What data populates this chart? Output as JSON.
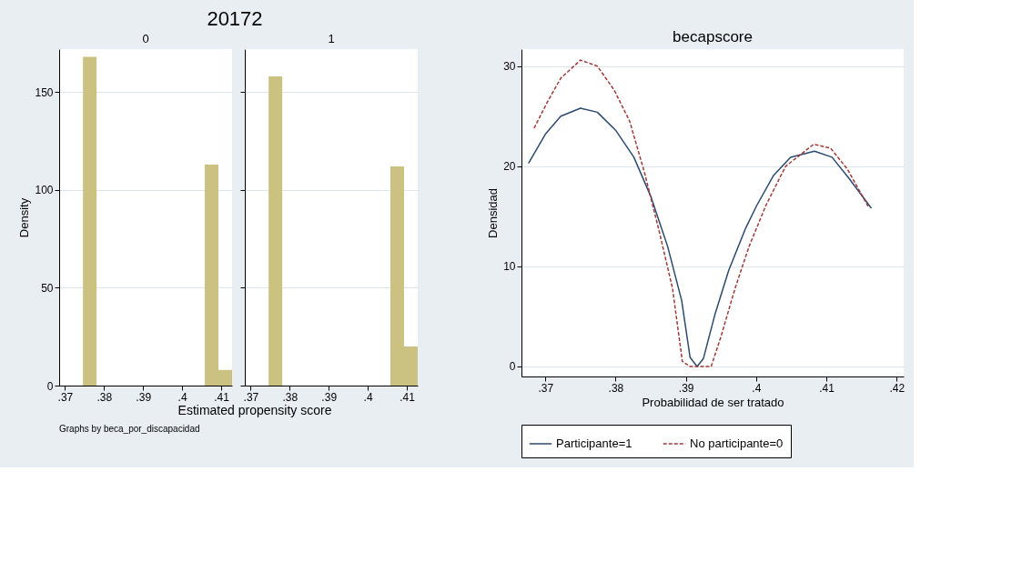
{
  "chart_data": [
    {
      "type": "histogram",
      "title": "20172",
      "subtitle": "0",
      "ylabel": "Density",
      "xlabel": "Estimated propensity score",
      "annotations": [
        "Graphs by beca_por_discapacidad"
      ],
      "bins": [
        0.3746,
        0.3781,
        0.3815,
        0.385,
        0.3885,
        0.392,
        0.3954,
        0.3989,
        0.4024,
        0.4058,
        0.4093,
        0.4128
      ],
      "values": [
        168,
        0,
        0,
        0,
        0,
        0,
        0,
        0,
        0,
        113,
        8
      ],
      "color": "#cbc282",
      "xlim": [
        0.3685,
        0.4128
      ],
      "xticks": [
        {
          "value": 0.37,
          "label": ".37"
        },
        {
          "value": 0.38,
          "label": ".38"
        },
        {
          "value": 0.39,
          "label": ".39"
        },
        {
          "value": 0.4,
          "label": ".4"
        },
        {
          "value": 0.41,
          "label": ".41"
        }
      ],
      "ylim": [
        0,
        172
      ],
      "yticks": [
        0,
        50,
        100,
        150
      ],
      "grid": "y"
    },
    {
      "type": "histogram",
      "title": "1",
      "bins": [
        0.3746,
        0.3781,
        0.3815,
        0.385,
        0.3885,
        0.392,
        0.3954,
        0.3989,
        0.4024,
        0.4058,
        0.4093,
        0.4128
      ],
      "values": [
        158,
        0,
        0,
        0,
        0,
        0,
        0,
        0,
        0,
        112,
        20
      ],
      "color": "#cbc282",
      "xlim": [
        0.3685,
        0.4128
      ],
      "xticks": [
        {
          "value": 0.37,
          "label": ".37"
        },
        {
          "value": 0.38,
          "label": ".38"
        },
        {
          "value": 0.39,
          "label": ".39"
        },
        {
          "value": 0.4,
          "label": ".4"
        },
        {
          "value": 0.41,
          "label": ".41"
        }
      ],
      "ylim": [
        0,
        172
      ],
      "yticks": [
        0,
        50,
        100,
        150
      ],
      "grid": "y",
      "tick_labels": "x"
    },
    {
      "type": "line",
      "title": "becapscore",
      "xlabel": "Probabilidad de ser tratado",
      "ylabel": "Densidad",
      "xlim": [
        0.3666,
        0.421
      ],
      "xticks": [
        {
          "value": 0.37,
          "label": ".37"
        },
        {
          "value": 0.38,
          "label": ".38"
        },
        {
          "value": 0.39,
          "label": ".39"
        },
        {
          "value": 0.4,
          "label": ".4"
        },
        {
          "value": 0.41,
          "label": ".41"
        },
        {
          "value": 0.42,
          "label": ".42"
        }
      ],
      "ylim": [
        -1,
        31.7
      ],
      "yticks": [
        0,
        10,
        20,
        30
      ],
      "grid": "y",
      "legend": "bottom",
      "series": [
        {
          "name": "Participante=1",
          "color": "#2c4a6e",
          "line_style": "solid",
          "x": [
            0.3676,
            0.37,
            0.3722,
            0.375,
            0.3774,
            0.38,
            0.3826,
            0.385,
            0.3874,
            0.3894,
            0.3906,
            0.3916,
            0.3925,
            0.3941,
            0.3961,
            0.3985,
            0.4001,
            0.4025,
            0.4049,
            0.4083,
            0.4108,
            0.4132,
            0.4164
          ],
          "values": [
            20.3,
            23.2,
            25.0,
            25.8,
            25.4,
            23.6,
            20.9,
            17.0,
            12.0,
            6.6,
            0.9,
            0,
            0.8,
            5.1,
            9.6,
            13.8,
            16.1,
            19.1,
            20.9,
            21.5,
            20.9,
            18.8,
            15.8
          ]
        },
        {
          "name": "No participante=0",
          "color": "#a03a3a",
          "line_style": "dashed",
          "x": [
            0.3684,
            0.3702,
            0.3722,
            0.375,
            0.3774,
            0.3798,
            0.382,
            0.3841,
            0.3861,
            0.3881,
            0.3895,
            0.3906,
            0.3936,
            0.395,
            0.397,
            0.399,
            0.4014,
            0.4042,
            0.4082,
            0.4106,
            0.413,
            0.416
          ],
          "values": [
            23.8,
            26.3,
            28.8,
            30.6,
            30.0,
            27.6,
            24.5,
            19.4,
            13.8,
            7.8,
            0.5,
            0,
            0,
            3.0,
            7.8,
            12.0,
            16.1,
            20.0,
            22.2,
            21.8,
            19.7,
            15.9
          ]
        }
      ]
    }
  ]
}
